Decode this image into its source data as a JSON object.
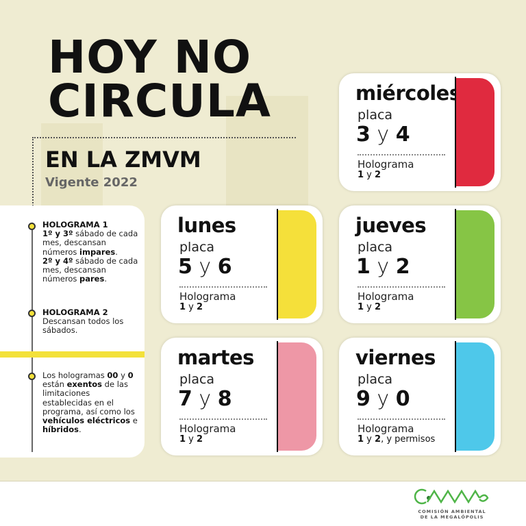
{
  "header": {
    "title_line1": "HOY NO",
    "title_line2": "CIRCULA",
    "subtitle": "EN LA ZMVM",
    "validity": "Vigente 2022"
  },
  "notes": [
    {
      "title": "HOLOGRAMA 1",
      "a": "1º y 3º",
      "b": " sábado de cada mes, descansan números ",
      "c": "impares",
      "d": ".",
      "e": "2º y 4º",
      "f": " sábado de cada mes, descansan números ",
      "g": "pares",
      "h": "."
    },
    {
      "title": "HOLOGRAMA 2",
      "text": "Descansan todos los sábados."
    },
    {
      "a": "Los hologramas ",
      "b": "00",
      "c": " y ",
      "d": "0",
      "e": " están ",
      "f": "exentos",
      "g": " de las limitaciones establecidas en el programa, así como los ",
      "h": "vehículos eléctricos",
      "i": " e ",
      "j": "híbridos",
      "k": "."
    }
  ],
  "cards": [
    {
      "day": "miércoles",
      "plate_label": "placa",
      "n1": "3",
      "y": " y ",
      "n2": "4",
      "holo_label": "Holograma",
      "h1": "1",
      "hy": " y ",
      "h2": "2",
      "h_extra": "",
      "color": "#e02a3f"
    },
    {
      "day": "lunes",
      "plate_label": "placa",
      "n1": "5",
      "y": " y ",
      "n2": "6",
      "holo_label": "Holograma",
      "h1": "1",
      "hy": " y ",
      "h2": "2",
      "h_extra": "",
      "color": "#f5e03a"
    },
    {
      "day": "jueves",
      "plate_label": "placa",
      "n1": "1",
      "y": " y ",
      "n2": "2",
      "holo_label": "Holograma",
      "h1": "1",
      "hy": " y ",
      "h2": "2",
      "h_extra": "",
      "color": "#86c545"
    },
    {
      "day": "martes",
      "plate_label": "placa",
      "n1": "7",
      "y": " y ",
      "n2": "8",
      "holo_label": "Holograma",
      "h1": "1",
      "hy": " y ",
      "h2": "2",
      "h_extra": "",
      "color": "#ee97a6"
    },
    {
      "day": "viernes",
      "plate_label": "placa",
      "n1": "9",
      "y": " y ",
      "n2": "0",
      "holo_label": "Holograma",
      "h1": "1",
      "hy": " y ",
      "h2": "2",
      "h_extra": ", y permisos",
      "color": "#4ec8ea"
    }
  ],
  "footer": {
    "logo_text": "CAMe",
    "logo_line1": "COMISIÓN AMBIENTAL",
    "logo_line2": "DE LA MEGALÓPOLIS",
    "logo_color": "#4fb548"
  }
}
